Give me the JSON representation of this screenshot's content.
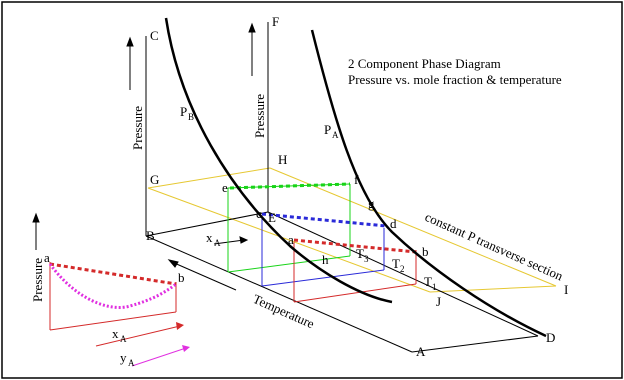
{
  "title": {
    "line1": "2 Component Phase Diagram",
    "line2": "Pressure vs. mole fraction & temperature"
  },
  "axes": {
    "pressure_left": "Pressure",
    "pressure_mid": "Pressure",
    "pressure_inset": "Pressure",
    "temperature": "Temperature",
    "xa_main": "x",
    "xa_main_sub": "A",
    "xa_inset": "x",
    "xa_inset_sub": "A",
    "ya_inset": "y",
    "ya_inset_sub": "A"
  },
  "section_label": "constant P transverse section",
  "curves": {
    "pb": "P",
    "pb_sub": "B",
    "pa": "P",
    "pa_sub": "A"
  },
  "isotherms": {
    "t1": "T",
    "t1_sub": "1",
    "t2": "T",
    "t2_sub": "2",
    "t3": "T",
    "t3_sub": "3"
  },
  "points": {
    "A": "A",
    "B": "B",
    "C": "C",
    "D": "D",
    "E": "E",
    "F": "F",
    "G": "G",
    "H": "H",
    "I": "I",
    "J": "J",
    "a": "a",
    "b": "b",
    "c": "c",
    "d": "d",
    "e": "e",
    "f": "f",
    "g": "g",
    "h": "h",
    "inset_a": "a",
    "inset_b": "b"
  },
  "colors": {
    "frame": "#000000",
    "plane": "#e6c832",
    "green": "#18d418",
    "blue": "#2a2ad8",
    "red": "#d42a2a",
    "magenta": "#e030e0",
    "curve": "#000000"
  }
}
